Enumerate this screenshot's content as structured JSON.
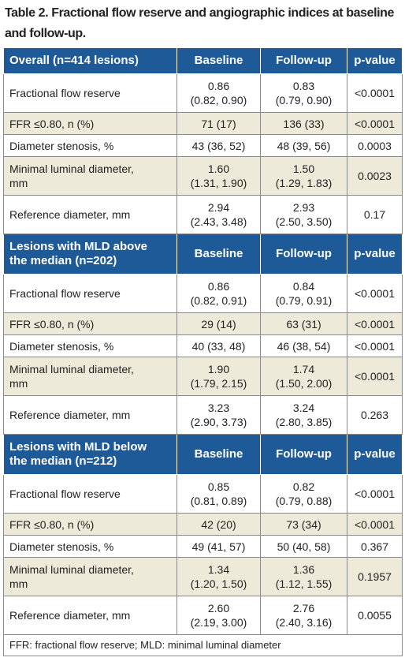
{
  "title": "Table 2. Fractional flow reserve and angiographic indices at baseline and follow-up.",
  "sections": [
    {
      "header": [
        "Overall (n=414 lesions)",
        "Baseline",
        "Follow-up",
        "p-value"
      ],
      "rows": [
        [
          "Fractional flow reserve",
          "0.86\n(0.82, 0.90)",
          "0.83\n(0.79, 0.90)",
          "<0.0001"
        ],
        [
          "FFR ≤0.80, n (%)",
          "71 (17)",
          "136 (33)",
          "<0.0001"
        ],
        [
          "Diameter stenosis, %",
          "43 (36, 52)",
          "48 (39, 56)",
          "0.0003"
        ],
        [
          "Minimal luminal diameter,\nmm",
          "1.60\n(1.31, 1.90)",
          "1.50\n(1.29, 1.83)",
          "0.0023"
        ],
        [
          "Reference diameter, mm",
          "2.94\n(2.43, 3.48)",
          "2.93\n(2.50, 3.50)",
          "0.17"
        ]
      ]
    },
    {
      "header": [
        "Lesions with MLD above\nthe median (n=202)",
        "Baseline",
        "Follow-up",
        "p-value"
      ],
      "rows": [
        [
          "Fractional flow reserve",
          "0.86\n(0.82, 0.91)",
          "0.84\n(0.79, 0.91)",
          "<0.0001"
        ],
        [
          "FFR ≤0.80, n (%)",
          "29 (14)",
          "63 (31)",
          "<0.0001"
        ],
        [
          "Diameter stenosis, %",
          "40 (33, 48)",
          "46 (38, 54)",
          "<0.0001"
        ],
        [
          "Minimal luminal diameter,\nmm",
          "1.90\n(1.79, 2.15)",
          "1.74\n(1.50, 2.00)",
          "<0.0001"
        ],
        [
          "Reference diameter, mm",
          "3.23\n(2.90, 3.73)",
          "3.24\n(2.80, 3.85)",
          "0.263"
        ]
      ]
    },
    {
      "header": [
        "Lesions with MLD below\nthe median (n=212)",
        "Baseline",
        "Follow-up",
        "p-value"
      ],
      "rows": [
        [
          "Fractional flow reserve",
          "0.85\n(0.81, 0.89)",
          "0.82\n(0.79, 0.88)",
          "<0.0001"
        ],
        [
          "FFR ≤0.80, n (%)",
          "42 (20)",
          "73 (34)",
          "<0.0001"
        ],
        [
          "Diameter stenosis, %",
          "49 (41, 57)",
          "50 (40, 58)",
          "0.367"
        ],
        [
          "Minimal luminal diameter,\nmm",
          "1.34\n(1.20, 1.50)",
          "1.36\n(1.12, 1.55)",
          "0.1957"
        ],
        [
          "Reference diameter, mm",
          "2.60\n(2.19, 3.00)",
          "2.76\n(2.40, 3.16)",
          "0.0055"
        ]
      ]
    }
  ],
  "footnote": "FFR: fractional flow reserve; MLD: minimal luminal diameter"
}
